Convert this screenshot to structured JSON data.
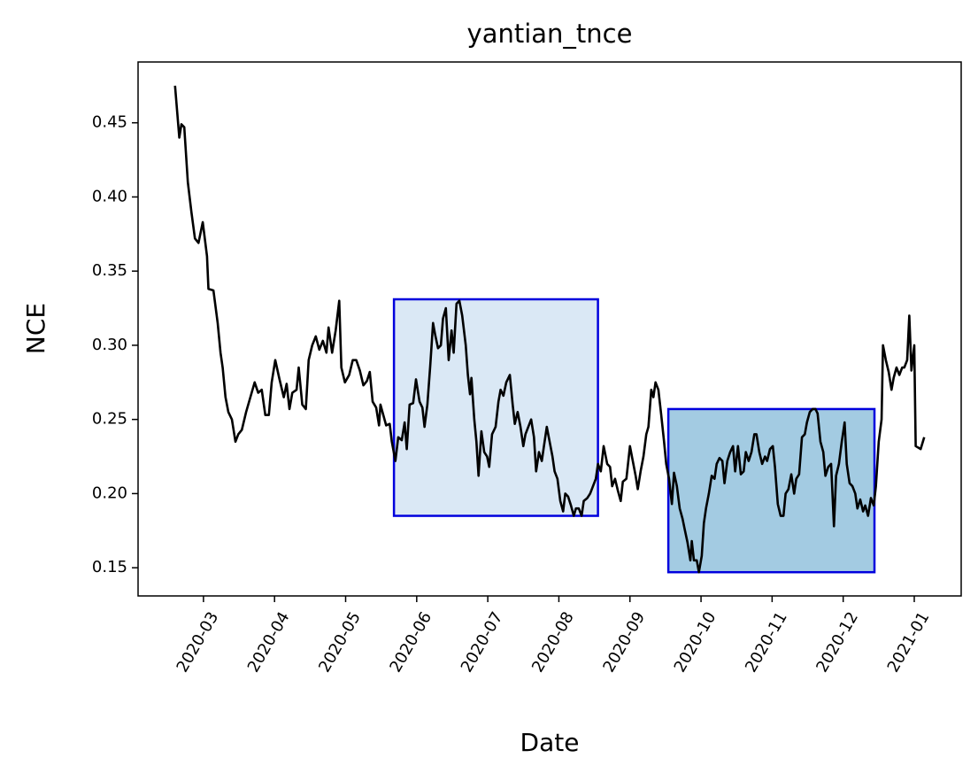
{
  "chart_data": {
    "type": "line",
    "title": "yantian_tnce",
    "xlabel": "Date",
    "ylabel": "NCE",
    "color": "#000000",
    "xlim": [
      2.08,
      13.66
    ],
    "ylim": [
      0.131,
      0.491
    ],
    "xticks": [
      {
        "value": 3,
        "label": "2020-03"
      },
      {
        "value": 4,
        "label": "2020-04"
      },
      {
        "value": 5,
        "label": "2020-05"
      },
      {
        "value": 6,
        "label": "2020-06"
      },
      {
        "value": 7,
        "label": "2020-07"
      },
      {
        "value": 8,
        "label": "2020-08"
      },
      {
        "value": 9,
        "label": "2020-09"
      },
      {
        "value": 10,
        "label": "2020-10"
      },
      {
        "value": 11,
        "label": "2020-11"
      },
      {
        "value": 12,
        "label": "2020-12"
      },
      {
        "value": 13,
        "label": "2021-01"
      }
    ],
    "yticks": [
      {
        "value": 0.15,
        "label": "0.15"
      },
      {
        "value": 0.2,
        "label": "0.20"
      },
      {
        "value": 0.25,
        "label": "0.25"
      },
      {
        "value": 0.3,
        "label": "0.30"
      },
      {
        "value": 0.35,
        "label": "0.35"
      },
      {
        "value": 0.4,
        "label": "0.40"
      },
      {
        "value": 0.45,
        "label": "0.45"
      }
    ],
    "regions": [
      {
        "x": [
          5.68,
          8.55
        ],
        "y": [
          0.185,
          0.331
        ],
        "color": "#dae8f5",
        "edgecolor": "#0000dd"
      },
      {
        "x": [
          9.54,
          12.44
        ],
        "y": [
          0.147,
          0.257
        ],
        "color": "#a3cbe2",
        "edgecolor": "#0000dd"
      }
    ],
    "x": [
      2.6,
      2.66,
      2.69,
      2.73,
      2.78,
      2.83,
      2.88,
      2.93,
      2.99,
      3.05,
      3.07,
      3.14,
      3.2,
      3.24,
      3.27,
      3.31,
      3.35,
      3.4,
      3.45,
      3.49,
      3.54,
      3.6,
      3.66,
      3.72,
      3.77,
      3.82,
      3.87,
      3.92,
      3.96,
      4.01,
      4.07,
      4.13,
      4.17,
      4.21,
      4.25,
      4.31,
      4.34,
      4.39,
      4.44,
      4.48,
      4.53,
      4.58,
      4.63,
      4.68,
      4.73,
      4.76,
      4.81,
      4.86,
      4.91,
      4.94,
      4.99,
      5.05,
      5.1,
      5.15,
      5.2,
      5.25,
      5.3,
      5.34,
      5.38,
      5.43,
      5.47,
      5.49,
      5.57,
      5.62,
      5.65,
      5.7,
      5.74,
      5.79,
      5.83,
      5.86,
      5.9,
      5.95,
      5.99,
      6.04,
      6.08,
      6.11,
      6.15,
      6.19,
      6.23,
      6.26,
      6.3,
      6.34,
      6.37,
      6.41,
      6.45,
      6.49,
      6.52,
      6.56,
      6.6,
      6.64,
      6.69,
      6.72,
      6.75,
      6.77,
      6.81,
      6.84,
      6.87,
      6.91,
      6.95,
      6.99,
      7.02,
      7.06,
      7.11,
      7.15,
      7.18,
      7.22,
      7.26,
      7.31,
      7.35,
      7.38,
      7.42,
      7.46,
      7.5,
      7.53,
      7.57,
      7.61,
      7.65,
      7.68,
      7.72,
      7.76,
      7.79,
      7.83,
      7.87,
      7.91,
      7.94,
      7.98,
      8.02,
      8.06,
      8.09,
      8.13,
      8.17,
      8.21,
      8.24,
      8.28,
      8.32,
      8.35,
      8.4,
      8.44,
      8.48,
      8.52,
      8.55,
      8.59,
      8.63,
      8.68,
      8.72,
      8.75,
      8.79,
      8.83,
      8.87,
      8.9,
      8.95,
      9.0,
      9.04,
      9.08,
      9.11,
      9.15,
      9.19,
      9.23,
      9.26,
      9.3,
      9.33,
      9.36,
      9.4,
      9.44,
      9.48,
      9.51,
      9.55,
      9.59,
      9.62,
      9.66,
      9.7,
      9.74,
      9.77,
      9.81,
      9.85,
      9.87,
      9.9,
      9.94,
      9.97,
      10.01,
      10.04,
      10.07,
      10.11,
      10.15,
      10.19,
      10.22,
      10.26,
      10.3,
      10.33,
      10.37,
      10.41,
      10.45,
      10.48,
      10.52,
      10.56,
      10.6,
      10.63,
      10.67,
      10.71,
      10.75,
      10.78,
      10.82,
      10.86,
      10.9,
      10.93,
      10.97,
      11.01,
      11.04,
      11.08,
      11.12,
      11.16,
      11.19,
      11.23,
      11.27,
      11.31,
      11.34,
      11.38,
      11.42,
      11.46,
      11.49,
      11.53,
      11.57,
      11.61,
      11.64,
      11.68,
      11.72,
      11.75,
      11.79,
      11.83,
      11.87,
      11.9,
      11.94,
      11.98,
      12.02,
      12.05,
      12.09,
      12.13,
      12.17,
      12.2,
      12.24,
      12.28,
      12.31,
      12.35,
      12.39,
      12.43,
      12.46,
      12.5,
      12.54,
      12.56,
      12.6,
      12.64,
      12.68,
      12.71,
      12.75,
      12.79,
      12.83,
      12.86,
      12.9,
      12.93,
      12.96,
      13.0,
      13.02,
      13.09,
      13.14
    ],
    "values": [
      0.475,
      0.44,
      0.449,
      0.447,
      0.41,
      0.39,
      0.372,
      0.369,
      0.383,
      0.36,
      0.338,
      0.337,
      0.315,
      0.295,
      0.285,
      0.265,
      0.255,
      0.25,
      0.235,
      0.24,
      0.243,
      0.255,
      0.265,
      0.275,
      0.268,
      0.27,
      0.253,
      0.253,
      0.275,
      0.29,
      0.277,
      0.265,
      0.274,
      0.257,
      0.268,
      0.27,
      0.285,
      0.26,
      0.257,
      0.29,
      0.3,
      0.306,
      0.297,
      0.303,
      0.295,
      0.312,
      0.295,
      0.31,
      0.33,
      0.285,
      0.275,
      0.28,
      0.29,
      0.29,
      0.283,
      0.273,
      0.276,
      0.282,
      0.262,
      0.258,
      0.246,
      0.26,
      0.246,
      0.247,
      0.235,
      0.222,
      0.238,
      0.236,
      0.248,
      0.23,
      0.26,
      0.261,
      0.277,
      0.262,
      0.258,
      0.245,
      0.26,
      0.286,
      0.315,
      0.307,
      0.298,
      0.3,
      0.318,
      0.325,
      0.29,
      0.31,
      0.295,
      0.328,
      0.33,
      0.32,
      0.3,
      0.28,
      0.267,
      0.278,
      0.25,
      0.235,
      0.212,
      0.242,
      0.228,
      0.225,
      0.218,
      0.24,
      0.245,
      0.262,
      0.27,
      0.266,
      0.275,
      0.28,
      0.26,
      0.247,
      0.255,
      0.245,
      0.232,
      0.24,
      0.245,
      0.25,
      0.238,
      0.215,
      0.228,
      0.222,
      0.232,
      0.245,
      0.235,
      0.225,
      0.215,
      0.21,
      0.195,
      0.188,
      0.2,
      0.198,
      0.192,
      0.185,
      0.19,
      0.19,
      0.185,
      0.195,
      0.197,
      0.2,
      0.205,
      0.21,
      0.22,
      0.215,
      0.232,
      0.22,
      0.218,
      0.205,
      0.21,
      0.202,
      0.195,
      0.208,
      0.21,
      0.232,
      0.222,
      0.212,
      0.203,
      0.215,
      0.225,
      0.24,
      0.245,
      0.27,
      0.265,
      0.275,
      0.27,
      0.253,
      0.235,
      0.22,
      0.21,
      0.193,
      0.214,
      0.205,
      0.19,
      0.183,
      0.176,
      0.167,
      0.155,
      0.168,
      0.155,
      0.155,
      0.147,
      0.158,
      0.18,
      0.19,
      0.2,
      0.212,
      0.21,
      0.22,
      0.224,
      0.222,
      0.207,
      0.222,
      0.228,
      0.232,
      0.215,
      0.232,
      0.213,
      0.215,
      0.228,
      0.222,
      0.228,
      0.24,
      0.24,
      0.228,
      0.22,
      0.225,
      0.222,
      0.23,
      0.232,
      0.218,
      0.193,
      0.185,
      0.185,
      0.2,
      0.203,
      0.213,
      0.2,
      0.21,
      0.213,
      0.238,
      0.24,
      0.248,
      0.255,
      0.257,
      0.257,
      0.254,
      0.235,
      0.228,
      0.212,
      0.218,
      0.22,
      0.178,
      0.212,
      0.22,
      0.235,
      0.248,
      0.22,
      0.207,
      0.205,
      0.2,
      0.19,
      0.196,
      0.188,
      0.192,
      0.185,
      0.197,
      0.192,
      0.205,
      0.235,
      0.25,
      0.3,
      0.29,
      0.282,
      0.27,
      0.278,
      0.285,
      0.28,
      0.285,
      0.285,
      0.29,
      0.32,
      0.283,
      0.3,
      0.232,
      0.23,
      0.238
    ]
  }
}
